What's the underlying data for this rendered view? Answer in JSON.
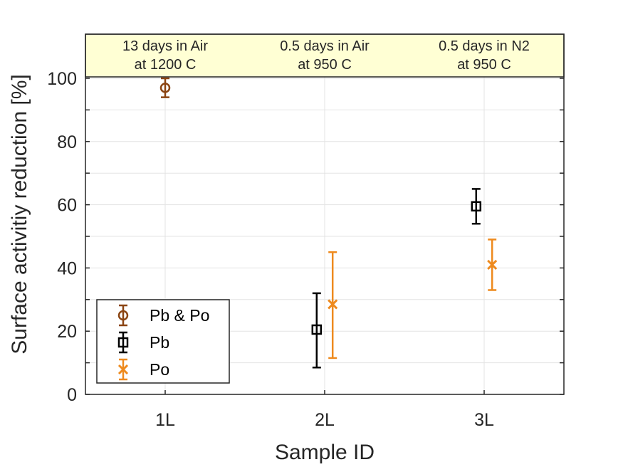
{
  "chart_data": {
    "type": "scatter",
    "xlabel": "Sample ID",
    "ylabel": "Surface activitiy reduction [%]",
    "categories": [
      "1L",
      "2L",
      "3L"
    ],
    "ylim": [
      0,
      100
    ],
    "yticks": [
      0,
      20,
      40,
      60,
      80,
      100
    ],
    "grid": true,
    "legend_position": "bottom-left",
    "condition_labels": [
      {
        "line1": "13 days in Air",
        "line2": "at 1200 C"
      },
      {
        "line1": "0.5 days in Air",
        "line2": "at 950 C"
      },
      {
        "line1": "0.5 days in N2",
        "line2": "at 950 C"
      }
    ],
    "series": [
      {
        "name": "Pb & Po",
        "marker": "circle",
        "color": "#8B4513",
        "points": [
          {
            "category": "1L",
            "offset": 0,
            "y": 97,
            "err_low": 94,
            "err_high": 100
          }
        ]
      },
      {
        "name": "Pb",
        "marker": "square",
        "color": "#000000",
        "points": [
          {
            "category": "2L",
            "offset": -0.05,
            "y": 20.5,
            "err_low": 8.5,
            "err_high": 32
          },
          {
            "category": "3L",
            "offset": -0.05,
            "y": 59.5,
            "err_low": 54,
            "err_high": 65
          }
        ]
      },
      {
        "name": "Po",
        "marker": "x",
        "color": "#EE8A1E",
        "points": [
          {
            "category": "2L",
            "offset": 0.05,
            "y": 28.5,
            "err_low": 11.5,
            "err_high": 45
          },
          {
            "category": "3L",
            "offset": 0.05,
            "y": 41,
            "err_low": 33,
            "err_high": 49
          }
        ]
      }
    ]
  }
}
